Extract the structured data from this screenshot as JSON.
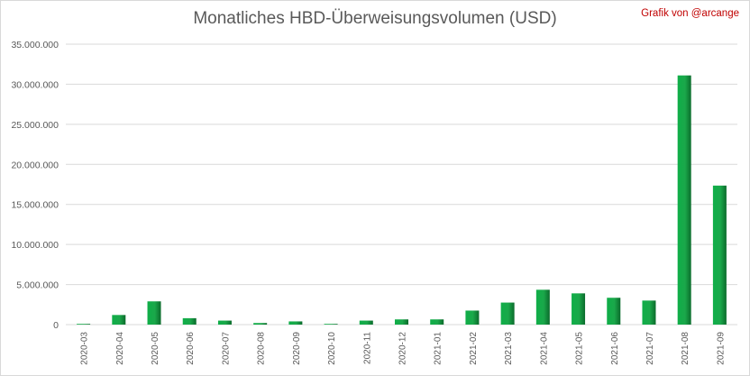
{
  "chart_data": {
    "type": "bar",
    "title": "Monatliches HBD-Überweisungsvolumen (USD)",
    "credit": "Grafik von @arcange",
    "xlabel": "",
    "ylabel": "",
    "ylim": [
      0,
      35000000
    ],
    "y_ticks": [
      "0",
      "5.000.000",
      "10.000.000",
      "15.000.000",
      "20.000.000",
      "25.000.000",
      "30.000.000",
      "35.000.000"
    ],
    "y_tick_values": [
      0,
      5000000,
      10000000,
      15000000,
      20000000,
      25000000,
      30000000,
      35000000
    ],
    "grid": true,
    "legend": "none",
    "bar_color": "#1aa84a",
    "bar_color_dark": "#0b6b2c",
    "grid_color": "#d9d9d9",
    "categories": [
      "2020-03",
      "2020-04",
      "2020-05",
      "2020-06",
      "2020-07",
      "2020-08",
      "2020-09",
      "2020-10",
      "2020-11",
      "2020-12",
      "2021-01",
      "2021-02",
      "2021-03",
      "2021-04",
      "2021-05",
      "2021-06",
      "2021-07",
      "2021-08",
      "2021-09"
    ],
    "values": [
      20000,
      1200000,
      2900000,
      800000,
      500000,
      200000,
      400000,
      50000,
      500000,
      650000,
      650000,
      1750000,
      2750000,
      4350000,
      3900000,
      3350000,
      3000000,
      31100000,
      17350000
    ]
  }
}
